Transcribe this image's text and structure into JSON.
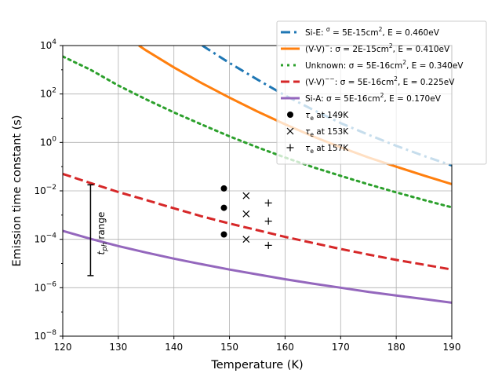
{
  "chart_data": {
    "type": "line",
    "xlabel": "Temperature (K)",
    "ylabel": "Emission time constant (s)",
    "xlim": [
      120,
      190
    ],
    "ylim_log10": [
      -8,
      4
    ],
    "yscale": "log",
    "grid": true,
    "legend_position": "upper-right (partially outside axes)",
    "x_ticks": [
      "120",
      "130",
      "140",
      "150",
      "160",
      "170",
      "180",
      "190"
    ],
    "x_tick_values": [
      120,
      130,
      140,
      150,
      160,
      170,
      180,
      190
    ],
    "y_ticks": [
      {
        "exp": -8,
        "base": "10",
        "sup": "−8"
      },
      {
        "exp": -6,
        "base": "10",
        "sup": "−6"
      },
      {
        "exp": -4,
        "base": "10",
        "sup": "−4"
      },
      {
        "exp": -2,
        "base": "10",
        "sup": "−2"
      },
      {
        "exp": 0,
        "base": "10",
        "sup": "0"
      },
      {
        "exp": 2,
        "base": "10",
        "sup": "2"
      },
      {
        "exp": 4,
        "base": "10",
        "sup": "4"
      }
    ],
    "series": [
      {
        "name": "Si-E: σ = 5E-15cm², E = 0.460eV",
        "legend_parts": [
          "Si-E: ",
          "σ",
          " = 5E-15cm",
          "2",
          ", E = 0.460eV"
        ],
        "color": "#1f77b4",
        "style": "dashdot",
        "x": [
          145.1,
          150,
          155,
          160,
          165,
          170,
          175,
          180,
          185,
          190
        ],
        "log10_y": [
          4.0,
          3.28,
          2.6,
          1.94,
          1.35,
          0.8,
          0.32,
          -0.14,
          -0.56,
          -0.95
        ]
      },
      {
        "name": "(V-V)⁻: σ = 2E-15cm², E = 0.410eV",
        "legend_parts": [
          "(V-V)",
          "−",
          ": σ = 2E-15cm",
          "2",
          ", E = 0.410eV"
        ],
        "color": "#ff7f0e",
        "style": "solid",
        "x": [
          133.7,
          135,
          140,
          145,
          150,
          155,
          160,
          165,
          170,
          175,
          180,
          185,
          190
        ],
        "log10_y": [
          4.0,
          3.8,
          3.1,
          2.45,
          1.85,
          1.28,
          0.75,
          0.25,
          -0.2,
          -0.62,
          -1.0,
          -1.37,
          -1.72
        ]
      },
      {
        "name": "Unknown: σ = 5E-16cm², E = 0.340eV",
        "legend_parts": [
          "Unknown: σ = 5E-16cm",
          "2",
          ", E = 0.340eV",
          "",
          ""
        ],
        "color": "#2ca02c",
        "style": "dotted",
        "x": [
          120,
          125,
          130,
          135,
          140,
          145,
          150,
          155,
          160,
          165,
          170,
          175,
          180,
          185,
          190
        ],
        "log10_y": [
          3.55,
          3.0,
          2.35,
          1.78,
          1.24,
          0.74,
          0.25,
          -0.2,
          -0.62,
          -1.02,
          -1.38,
          -1.73,
          -2.06,
          -2.38,
          -2.68
        ]
      },
      {
        "name": "(V-V)⁻⁻: σ = 5E-16cm², E = 0.225eV",
        "legend_parts": [
          "(V-V)",
          "−−",
          ": σ = 5E-16cm",
          "2",
          ", E = 0.225eV"
        ],
        "color": "#d62728",
        "style": "dashed",
        "x": [
          120,
          125,
          130,
          135,
          140,
          145,
          150,
          155,
          160,
          165,
          170,
          175,
          180,
          185,
          190
        ],
        "log10_y": [
          -1.3,
          -1.68,
          -2.05,
          -2.38,
          -2.72,
          -3.05,
          -3.35,
          -3.62,
          -3.9,
          -4.15,
          -4.4,
          -4.63,
          -4.85,
          -5.05,
          -5.25
        ]
      },
      {
        "name": "Si-A: σ = 5E-16cm², E = 0.170eV",
        "legend_parts": [
          "Si-A: σ = 5E-16cm",
          "2",
          ", E = 0.170eV",
          "",
          ""
        ],
        "color": "#9467bd",
        "style": "solid",
        "x": [
          120,
          125,
          130,
          135,
          140,
          145,
          150,
          155,
          160,
          165,
          170,
          175,
          180,
          185,
          190
        ],
        "log10_y": [
          -3.65,
          -3.98,
          -4.28,
          -4.55,
          -4.8,
          -5.03,
          -5.25,
          -5.45,
          -5.65,
          -5.83,
          -6.0,
          -6.17,
          -6.32,
          -6.47,
          -6.62
        ]
      }
    ],
    "markers": [
      {
        "name": "τe at 149K",
        "label_main": "τ",
        "label_sub": "e",
        "label_rest": " at 149K",
        "symbol": "circle",
        "x": 149,
        "log10_y": [
          -1.9,
          -2.7,
          -3.8
        ]
      },
      {
        "name": "τe at 153K",
        "label_main": "τ",
        "label_sub": "e",
        "label_rest": " at 153K",
        "symbol": "x",
        "x": 153,
        "log10_y": [
          -2.2,
          -2.95,
          -4.0
        ]
      },
      {
        "name": "τe at 157K",
        "label_main": "τ",
        "label_sub": "e",
        "label_rest": " at 157K",
        "symbol": "plus",
        "x": 157,
        "log10_y": [
          -2.5,
          -3.25,
          -4.25
        ]
      }
    ],
    "annotation": {
      "text_main": "t",
      "text_sub": "ph",
      "text_rest": " range",
      "x": 125,
      "log10_y_range": [
        -5.5,
        -1.75
      ]
    },
    "overlay_band": {
      "color": "#ffffff",
      "opacity": 0.75,
      "covers": "legend box area"
    }
  }
}
